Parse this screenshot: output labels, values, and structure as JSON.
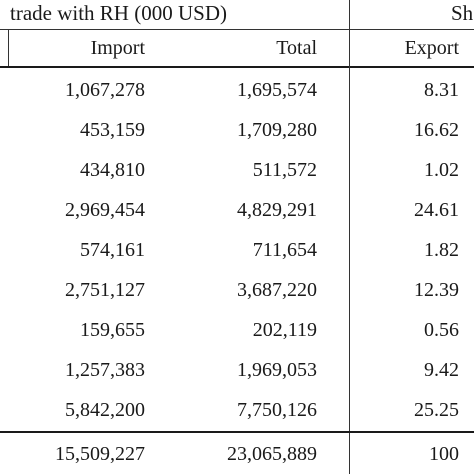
{
  "table": {
    "group_header_left": "trade with RH (000 USD)",
    "group_header_right": "Sh",
    "columns": [
      "Import",
      "Total",
      "Export"
    ],
    "rows": [
      {
        "import": "1,067,278",
        "total": "1,695,574",
        "export": "8.31"
      },
      {
        "import": "453,159",
        "total": "1,709,280",
        "export": "16.62"
      },
      {
        "import": "434,810",
        "total": "511,572",
        "export": "1.02"
      },
      {
        "import": "2,969,454",
        "total": "4,829,291",
        "export": "24.61"
      },
      {
        "import": "574,161",
        "total": "711,654",
        "export": "1.82"
      },
      {
        "import": "2,751,127",
        "total": "3,687,220",
        "export": "12.39"
      },
      {
        "import": "159,655",
        "total": "202,119",
        "export": "0.56"
      },
      {
        "import": "1,257,383",
        "total": "1,969,053",
        "export": "9.42"
      },
      {
        "import": "5,842,200",
        "total": "7,750,126",
        "export": "25.25"
      },
      {
        "import": "15,509,227",
        "total": "23,065,889",
        "export": "100"
      }
    ]
  }
}
